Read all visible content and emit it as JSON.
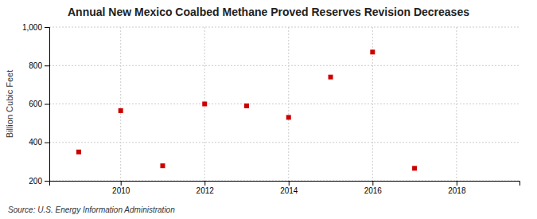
{
  "chart_data": {
    "type": "scatter",
    "title": "Annual New Mexico Coalbed Methane Proved Reserves Revision Decreases",
    "y_label": "Billion Cubic Feet",
    "source": "Source: U.S. Energy Information Administration",
    "x": [
      2009,
      2010,
      2011,
      2012,
      2013,
      2014,
      2015,
      2016,
      2017
    ],
    "values": [
      350,
      565,
      278,
      600,
      590,
      530,
      740,
      870,
      265
    ],
    "color": "#cc0000",
    "marker": "square",
    "xlim": [
      2008.3,
      2019.5
    ],
    "xticks": [
      2010,
      2012,
      2014,
      2016,
      2018
    ],
    "ylim": [
      200,
      1000
    ],
    "yticks": [
      200,
      400,
      600,
      800,
      {
        "value": 1000,
        "label": "1,000"
      }
    ],
    "grid": true
  }
}
